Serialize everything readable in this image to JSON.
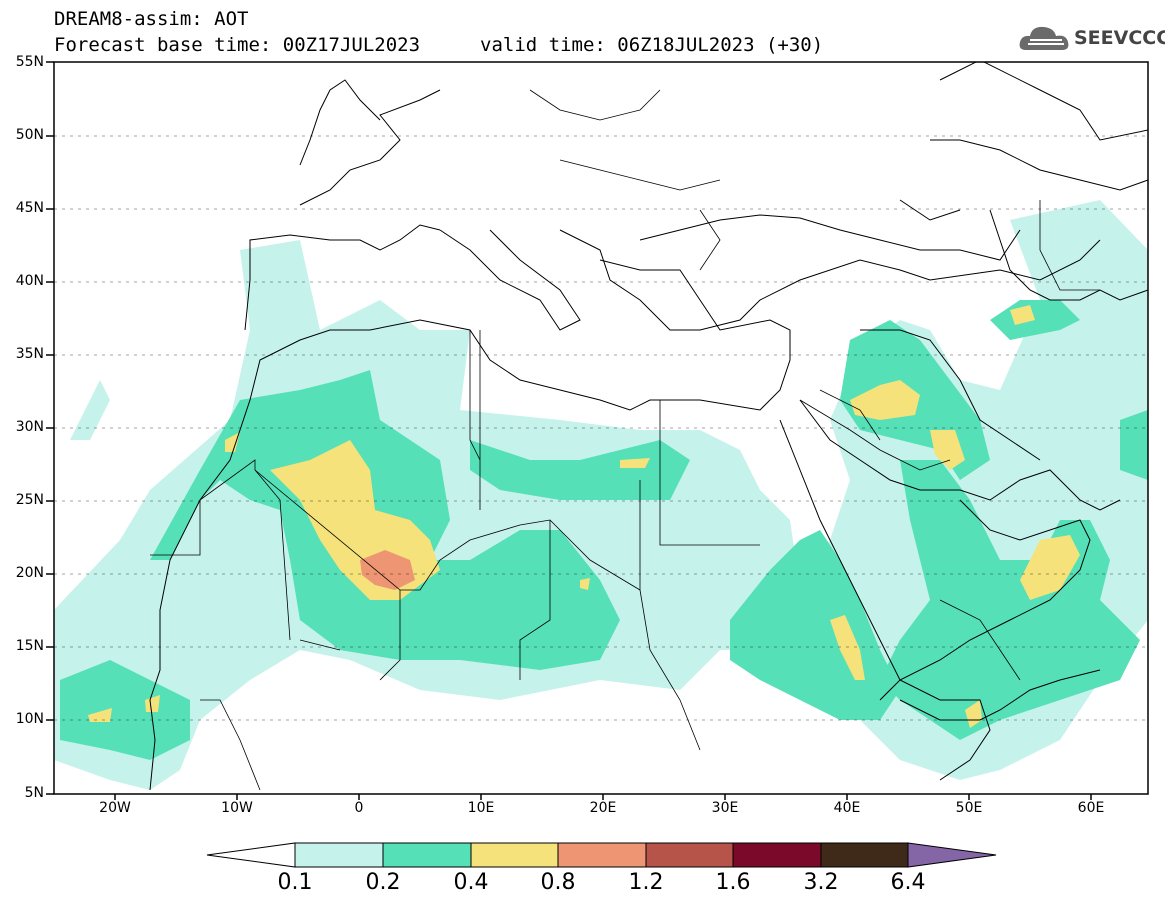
{
  "header": {
    "title": "DREAM8-assim: AOT",
    "base_time": "Forecast base time: 00Z17JUL2023",
    "valid_time": "valid time: 06Z18JUL2023 (+30)"
  },
  "logo": {
    "text": "SEEVCCC",
    "icon": "cloud-icon"
  },
  "map": {
    "projection": "lat-lon",
    "lat_range": [
      5,
      55
    ],
    "lon_range": [
      -25,
      65
    ],
    "lat_labels": [
      "55N",
      "50N",
      "45N",
      "40N",
      "35N",
      "30N",
      "25N",
      "20N",
      "15N",
      "10N",
      "5N"
    ],
    "lon_labels": [
      "20W",
      "10W",
      "0",
      "10E",
      "20E",
      "30E",
      "40E",
      "50E",
      "60E"
    ],
    "colors": {
      "c01": "#c6f2ec",
      "c02": "#55e0b8",
      "c04": "#f5e27a",
      "c08": "#ee9573",
      "c12": "#b6544a",
      "c16": "#7b0a2a",
      "c32": "#3f2a1a",
      "c64": "#8466a6",
      "coast": "#000000"
    }
  },
  "colorbar": {
    "labels": [
      "0.1",
      "0.2",
      "0.4",
      "0.8",
      "1.2",
      "1.6",
      "3.2",
      "6.4"
    ],
    "colors": [
      "#ffffff",
      "#c6f2ec",
      "#55e0b8",
      "#f5e27a",
      "#ee9573",
      "#b6544a",
      "#7b0a2a",
      "#3f2a1a",
      "#8466a6"
    ]
  }
}
